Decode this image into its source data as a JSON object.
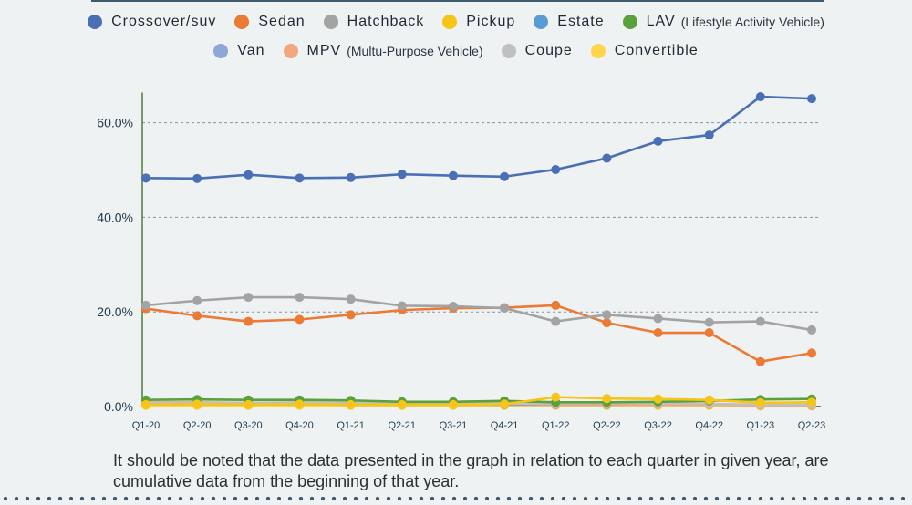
{
  "footnote": "It should be noted that the data presented in the graph in relation to each quarter in given year, are cumulative data from the beginning of that year.",
  "chart_data": {
    "type": "line",
    "title": "",
    "xlabel": "",
    "ylabel": "",
    "ylim": [
      0,
      66
    ],
    "yticks": [
      0,
      20,
      40,
      60
    ],
    "ytick_labels": [
      "0.0%",
      "20.0%",
      "40.0%",
      "60.0%"
    ],
    "grid": "horizontal dashed",
    "legend_position": "top",
    "categories": [
      "Q1-20",
      "Q2-20",
      "Q3-20",
      "Q4-20",
      "Q1-21",
      "Q2-21",
      "Q3-21",
      "Q4-21",
      "Q1-22",
      "Q2-22",
      "Q3-22",
      "Q4-22",
      "Q1-23",
      "Q2-23"
    ],
    "series": [
      {
        "name": "Crossover/suv",
        "note": "",
        "color": "#4a6fb5",
        "values": [
          48.3,
          48.2,
          49.0,
          48.3,
          48.4,
          49.1,
          48.8,
          48.6,
          50.1,
          52.5,
          56.1,
          57.4,
          65.5,
          65.1
        ]
      },
      {
        "name": "Sedan",
        "note": "",
        "color": "#eb7a35",
        "values": [
          20.7,
          19.2,
          18.0,
          18.4,
          19.4,
          20.4,
          20.8,
          20.9,
          21.4,
          17.7,
          15.6,
          15.6,
          9.5,
          11.3
        ]
      },
      {
        "name": "Hatchback",
        "note": "",
        "color": "#a3a3a3",
        "values": [
          21.4,
          22.4,
          23.1,
          23.1,
          22.7,
          21.3,
          21.2,
          20.8,
          18.0,
          19.4,
          18.6,
          17.8,
          18.0,
          16.2
        ]
      },
      {
        "name": "Pickup",
        "note": "",
        "color": "#f6c518",
        "values": [
          0.4,
          0.5,
          0.4,
          0.5,
          0.4,
          0.4,
          0.4,
          0.5,
          2.0,
          1.7,
          1.6,
          1.4,
          0.8,
          0.9
        ]
      },
      {
        "name": "Estate",
        "note": "",
        "color": "#5b9bd5",
        "values": [
          0.6,
          0.6,
          0.5,
          0.6,
          0.5,
          0.5,
          0.5,
          0.5,
          0.5,
          0.5,
          0.6,
          0.5,
          0.3,
          0.3
        ]
      },
      {
        "name": "LAV",
        "note": "(Lifestyle Activity Vehicle)",
        "color": "#5aa13d",
        "values": [
          1.4,
          1.5,
          1.4,
          1.4,
          1.3,
          1.0,
          1.0,
          1.2,
          0.9,
          0.9,
          1.0,
          1.2,
          1.5,
          1.6
        ]
      },
      {
        "name": "Van",
        "note": "",
        "color": "#8ea7d8",
        "values": [
          0.5,
          0.5,
          0.5,
          0.5,
          0.4,
          0.4,
          0.4,
          0.4,
          0.4,
          0.4,
          0.4,
          0.4,
          0.3,
          0.3
        ]
      },
      {
        "name": "MPV",
        "note": "(Multu-Purpose Vehicle)",
        "color": "#f2a77c",
        "values": [
          0.9,
          0.9,
          0.8,
          0.8,
          0.7,
          0.6,
          0.6,
          0.6,
          0.5,
          0.5,
          0.4,
          0.4,
          0.2,
          0.2
        ]
      },
      {
        "name": "Coupe",
        "note": "",
        "color": "#c0c0c0",
        "values": [
          0.8,
          0.8,
          0.8,
          0.9,
          0.8,
          0.7,
          0.7,
          0.7,
          0.7,
          0.8,
          0.7,
          0.6,
          0.4,
          0.4
        ]
      },
      {
        "name": "Convertible",
        "note": "",
        "color": "#ffd54a",
        "values": [
          0.2,
          0.2,
          0.2,
          0.2,
          0.2,
          0.2,
          0.2,
          0.2,
          0.2,
          0.2,
          0.2,
          0.2,
          0.1,
          0.1
        ]
      }
    ]
  }
}
